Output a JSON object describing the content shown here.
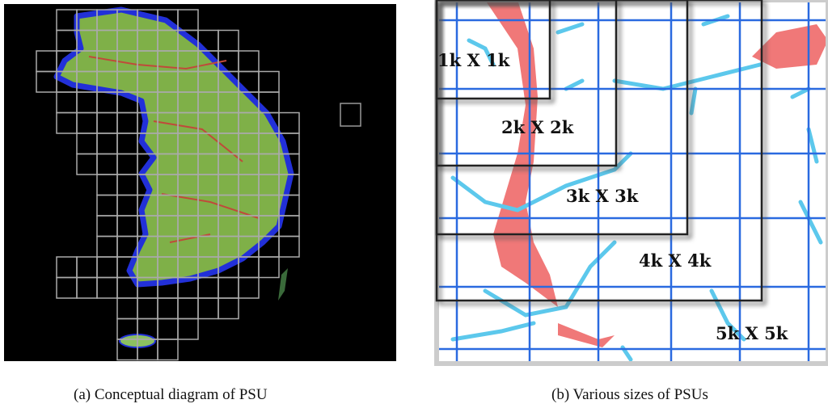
{
  "figures": [
    {
      "caption": "(a) Conceptual diagram of PSU"
    },
    {
      "caption": "(b) Various sizes of PSUs",
      "labels": [
        "1k X 1k",
        "2k X 2k",
        "3k X 3k",
        "4k X 4k",
        "5k X 5k"
      ]
    }
  ]
}
